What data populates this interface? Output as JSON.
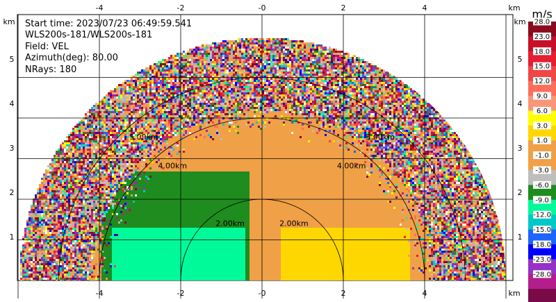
{
  "info": {
    "start_time": "Start time: 2023/07/23 06:49:59.541",
    "instrument": "WLS200s-181/WLS200s-181",
    "field": "Field: VEL",
    "azimuth": "Azimuth(deg): 80.00",
    "nrays": "NRays: 180"
  },
  "chart_data": {
    "type": "heatmap",
    "projection": "RHI half-disc (range-height)",
    "x_unit": "km",
    "y_unit": "km",
    "xlim": [
      -6,
      6
    ],
    "ylim": [
      0,
      6
    ],
    "x_ticks": [
      "-4",
      "-2",
      "-0",
      "2",
      "4"
    ],
    "y_ticks": [
      "1",
      "2",
      "3",
      "4",
      "5"
    ],
    "max_range_km": 6,
    "range_rings": [
      {
        "radius": 2,
        "label": "2.00km"
      },
      {
        "radius": 4,
        "label": "4.00km"
      },
      {
        "radius": 5,
        "label": "5.00km"
      }
    ],
    "colorbar": {
      "unit": "m/s",
      "ticks": [
        "28.0",
        "23.0",
        "18.0",
        "15.0",
        "12.0",
        "9.0",
        "6.0",
        "3.0",
        "1.0",
        "-1.0",
        "-3.0",
        "-6.0",
        "-9.0",
        "-12.0",
        "-15.0",
        "-18.0",
        "-23.0",
        "-28.0"
      ],
      "colors": [
        "#8b0a1e",
        "#c80f28",
        "#e61e32",
        "#f04646",
        "#ff6e5a",
        "#fa9678",
        "#ffff00",
        "#ffd700",
        "#f0a046",
        "#f0a046",
        "#bebebe",
        "#1e8c1e",
        "#00fa9a",
        "#00c8c8",
        "#1e64ff",
        "#0000ff",
        "#9632c8",
        "#b41e8c",
        "#780a46"
      ]
    },
    "series": [
      {
        "name": "VEL",
        "region": "left low (-3.8..-0.4 km, 0..1.4 km)",
        "value": -9.0
      },
      {
        "name": "VEL",
        "region": "left middle (-4..-0.4 km, 0.6..2.8 km)",
        "value": -4.0
      },
      {
        "name": "VEL",
        "region": "center (-0.4..0.4 km)",
        "value": 0.0
      },
      {
        "name": "VEL",
        "region": "right middle (0.2..4 km, 0..2.8 km)",
        "value": 2.0
      },
      {
        "name": "VEL",
        "region": "right low (0.4..3.8 km, 0.2..1.4 km)",
        "value": 5.0
      },
      {
        "name": "VEL",
        "region": "outer range > ~4.2 km",
        "value": "noise"
      }
    ]
  }
}
